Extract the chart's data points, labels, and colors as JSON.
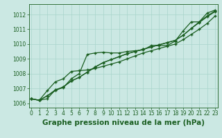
{
  "xlabel": "Graphe pression niveau de la mer (hPa)",
  "background_color": "#cbe8e3",
  "grid_color": "#a8d5cc",
  "line_color": "#1a5e20",
  "x": [
    0,
    1,
    2,
    3,
    4,
    5,
    6,
    7,
    8,
    9,
    10,
    11,
    12,
    13,
    14,
    15,
    16,
    17,
    18,
    19,
    20,
    21,
    22,
    23
  ],
  "line1": [
    1006.3,
    1006.2,
    1006.3,
    1006.9,
    1007.05,
    1007.65,
    1008.0,
    1009.3,
    1009.4,
    1009.45,
    1009.4,
    1009.4,
    1009.5,
    1009.55,
    1009.6,
    1009.9,
    1009.9,
    1009.9,
    1010.2,
    1010.9,
    1011.5,
    1011.5,
    1012.1,
    1012.3
  ],
  "line2": [
    1006.3,
    1006.2,
    1006.85,
    1007.45,
    1007.65,
    1008.15,
    1008.2,
    1008.25,
    1008.35,
    1008.5,
    1008.65,
    1008.8,
    1009.0,
    1009.2,
    1009.4,
    1009.55,
    1009.7,
    1009.85,
    1010.0,
    1010.3,
    1010.65,
    1011.0,
    1011.4,
    1011.9
  ],
  "line3": [
    1006.3,
    1006.2,
    1006.5,
    1006.9,
    1007.1,
    1007.5,
    1007.75,
    1008.1,
    1008.45,
    1008.75,
    1008.95,
    1009.15,
    1009.35,
    1009.5,
    1009.65,
    1009.8,
    1009.95,
    1010.1,
    1010.25,
    1010.6,
    1011.05,
    1011.45,
    1011.85,
    1012.2
  ],
  "line4": [
    1006.3,
    1006.2,
    1006.5,
    1006.85,
    1007.1,
    1007.5,
    1007.75,
    1008.1,
    1008.45,
    1008.75,
    1008.95,
    1009.15,
    1009.35,
    1009.5,
    1009.65,
    1009.8,
    1009.95,
    1010.1,
    1010.25,
    1010.6,
    1011.05,
    1011.5,
    1011.9,
    1012.25
  ],
  "ylim": [
    1005.7,
    1012.7
  ],
  "yticks": [
    1006,
    1007,
    1008,
    1009,
    1010,
    1011,
    1012
  ],
  "xticks": [
    0,
    1,
    2,
    3,
    4,
    5,
    6,
    7,
    8,
    9,
    10,
    11,
    12,
    13,
    14,
    15,
    16,
    17,
    18,
    19,
    20,
    21,
    22,
    23
  ],
  "marker": "+",
  "markersize": 3.5,
  "linewidth": 0.9,
  "xlabel_fontsize": 7.5,
  "tick_fontsize": 5.5,
  "xlabel_color": "#1a5e20",
  "tick_color": "#1a5e20",
  "spine_color": "#1a5e20"
}
